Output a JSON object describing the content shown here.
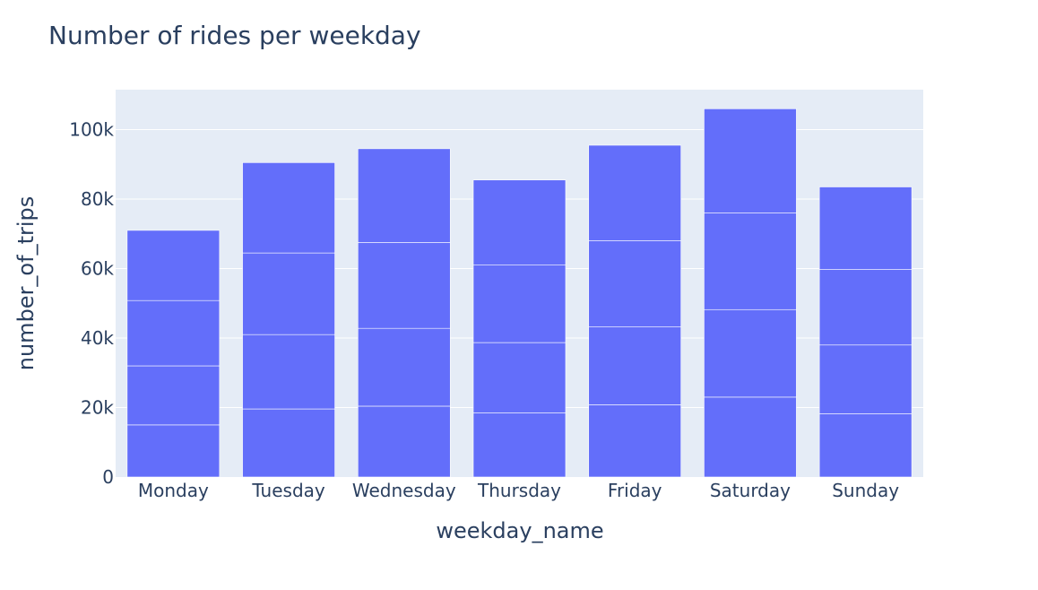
{
  "chart_data": {
    "type": "bar",
    "title": "Number of rides per weekday",
    "xlabel": "weekday_name",
    "ylabel": "number_of_trips",
    "categories": [
      "Monday",
      "Tuesday",
      "Wednesday",
      "Thursday",
      "Friday",
      "Saturday",
      "Sunday"
    ],
    "stacked": true,
    "segment_boundaries": [
      [
        15000,
        32000,
        50800,
        71000
      ],
      [
        19600,
        41000,
        64500,
        90500
      ],
      [
        20400,
        42800,
        67500,
        94500
      ],
      [
        18500,
        38700,
        61000,
        85500
      ],
      [
        20800,
        43200,
        68000,
        95500
      ],
      [
        23000,
        48200,
        76000,
        106000
      ],
      [
        18200,
        38000,
        59800,
        83500
      ]
    ],
    "values": [
      71000,
      90500,
      94500,
      85500,
      95500,
      106000,
      83500
    ],
    "ylim": [
      0,
      111500
    ],
    "yticks": [
      0,
      20000,
      40000,
      60000,
      80000,
      100000
    ],
    "ytick_labels": [
      "0",
      "20k",
      "40k",
      "60k",
      "80k",
      "100k"
    ],
    "grid": true,
    "colors": {
      "bar": "#636efa",
      "plot_bg": "#e5ecf6",
      "grid": "#ffffff",
      "text": "#2a3f5f"
    }
  }
}
